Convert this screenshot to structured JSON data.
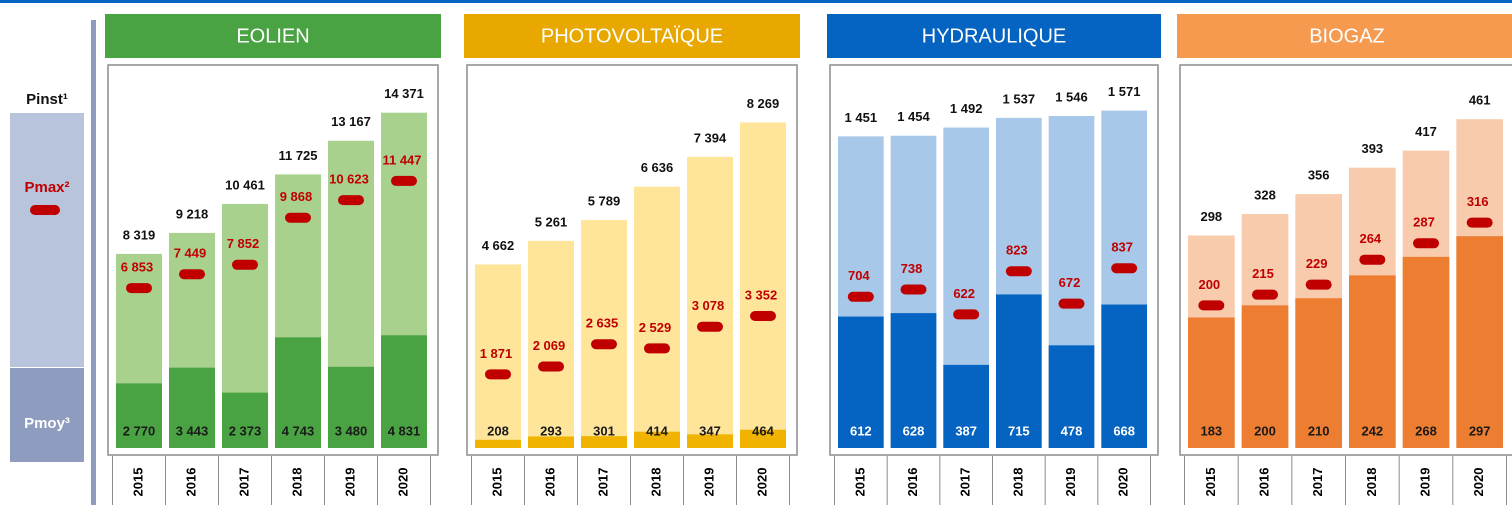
{
  "chart_data": [
    {
      "type": "bar",
      "title": "EOLIEN",
      "header_color": "#4aa342",
      "label_color": "#1a1a1a",
      "categories": [
        "2015",
        "2016",
        "2017",
        "2018",
        "2019",
        "2020"
      ],
      "ylim": [
        0,
        16200
      ],
      "series": [
        {
          "name": "Pinst¹",
          "color": "#a9d18e",
          "values": [
            8319,
            9218,
            10461,
            11725,
            13167,
            14371
          ],
          "value_labels": [
            "8 319",
            "9 218",
            "10 461",
            "11 725",
            "13 167",
            "14 371"
          ]
        },
        {
          "name": "Pmax²",
          "color": "#c00000",
          "values": [
            6853,
            7449,
            7852,
            9868,
            10623,
            11447
          ],
          "value_labels": [
            "6 853",
            "7 449",
            "7 852",
            "9 868",
            "10 623",
            "11 447"
          ]
        },
        {
          "name": "Pmoy³",
          "color": "#4aa342",
          "values": [
            2770,
            3443,
            2373,
            4743,
            3480,
            4831
          ],
          "value_labels": [
            "2 770",
            "3 443",
            "2 373",
            "4 743",
            "3 480",
            "4 831"
          ]
        }
      ]
    },
    {
      "type": "bar",
      "title": "PHOTOVOLTAÏQUE",
      "header_color": "#e8a800",
      "label_color": "#1a1a1a",
      "categories": [
        "2015",
        "2016",
        "2017",
        "2018",
        "2019",
        "2020"
      ],
      "ylim": [
        0,
        9600
      ],
      "series": [
        {
          "name": "Pinst¹",
          "color": "#fee599",
          "values": [
            4662,
            5261,
            5789,
            6636,
            7394,
            8269
          ],
          "value_labels": [
            "4 662",
            "5 261",
            "5 789",
            "6 636",
            "7 394",
            "8 269"
          ]
        },
        {
          "name": "Pmax²",
          "color": "#c00000",
          "values": [
            1871,
            2069,
            2635,
            2529,
            3078,
            3352
          ],
          "value_labels": [
            "1 871",
            "2 069",
            "2 635",
            "2 529",
            "3 078",
            "3 352"
          ]
        },
        {
          "name": "Pmoy³",
          "color": "#f0b400",
          "values": [
            208,
            293,
            301,
            414,
            347,
            464
          ],
          "value_labels": [
            "208",
            "293",
            "301",
            "414",
            "347",
            "464"
          ]
        }
      ]
    },
    {
      "type": "bar",
      "title": "HYDRAULIQUE",
      "header_color": "#0563c1",
      "label_color": "#ffffff",
      "categories": [
        "2015",
        "2016",
        "2017",
        "2018",
        "2019",
        "2020"
      ],
      "ylim": [
        0,
        1760
      ],
      "series": [
        {
          "name": "Pinst¹",
          "color": "#a7c8e8",
          "values": [
            1451,
            1454,
            1492,
            1537,
            1546,
            1571
          ],
          "value_labels": [
            "1 451",
            "1 454",
            "1 492",
            "1 537",
            "1 546",
            "1 571"
          ]
        },
        {
          "name": "Pmax²",
          "color": "#c00000",
          "values": [
            704,
            738,
            622,
            823,
            672,
            837
          ],
          "value_labels": [
            "704",
            "738",
            "622",
            "823",
            "672",
            "837"
          ]
        },
        {
          "name": "Pmoy³",
          "color": "#0563c1",
          "values": [
            612,
            628,
            387,
            715,
            478,
            668
          ],
          "value_labels": [
            "612",
            "628",
            "387",
            "715",
            "478",
            "668"
          ]
        }
      ]
    },
    {
      "type": "bar",
      "title": "BIOGAZ",
      "header_color": "#f59a4f",
      "label_color": "#1a1a1a",
      "categories": [
        "2015",
        "2016",
        "2017",
        "2018",
        "2019",
        "2020"
      ],
      "ylim": [
        0,
        530
      ],
      "series": [
        {
          "name": "Pinst¹",
          "color": "#f8cbad",
          "values": [
            298,
            328,
            356,
            393,
            417,
            461
          ],
          "value_labels": [
            "298",
            "328",
            "356",
            "393",
            "417",
            "461"
          ]
        },
        {
          "name": "Pmax²",
          "color": "#c00000",
          "values": [
            200,
            215,
            229,
            264,
            287,
            316
          ],
          "value_labels": [
            "200",
            "215",
            "229",
            "264",
            "287",
            "316"
          ]
        },
        {
          "name": "Pmoy³",
          "color": "#ed7d31",
          "values": [
            183,
            200,
            210,
            242,
            268,
            297
          ],
          "value_labels": [
            "183",
            "200",
            "210",
            "242",
            "268",
            "297"
          ]
        }
      ]
    }
  ]
}
